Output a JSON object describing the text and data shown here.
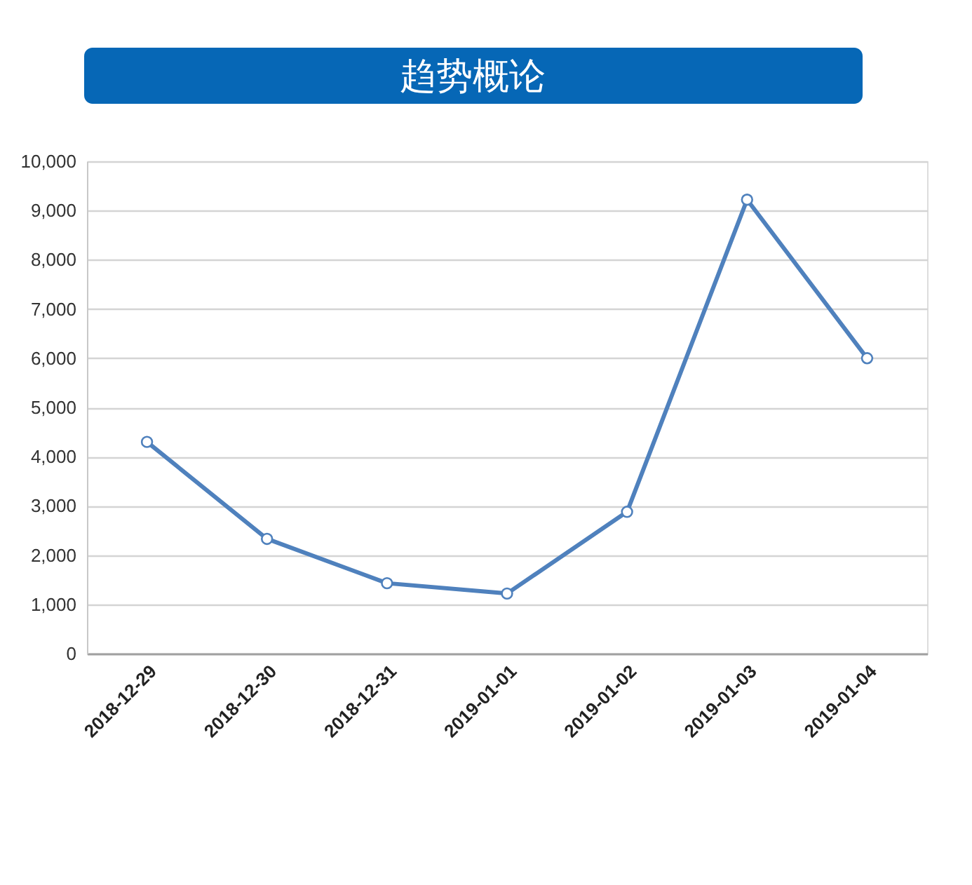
{
  "chart_data": {
    "type": "line",
    "title": "趋势概论",
    "categories": [
      "2018-12-29",
      "2018-12-30",
      "2018-12-31",
      "2019-01-01",
      "2019-01-02",
      "2019-01-03",
      "2019-01-04"
    ],
    "series": [
      {
        "color": "#4f81bd",
        "values": [
          4300,
          2330,
          1430,
          1220,
          2880,
          9220,
          6000
        ]
      }
    ],
    "ylim": [
      0,
      10000
    ],
    "yticks": [
      0,
      {
        "value": 1000,
        "label": "1,000"
      },
      {
        "value": 2000,
        "label": "2,000"
      },
      {
        "value": 3000,
        "label": "3,000"
      },
      {
        "value": 4000,
        "label": "4,000"
      },
      {
        "value": 5000,
        "label": "5,000"
      },
      {
        "value": 6000,
        "label": "6,000"
      },
      {
        "value": 7000,
        "label": "7,000"
      },
      {
        "value": 8000,
        "label": "8,000"
      },
      {
        "value": 9000,
        "label": "9,000"
      },
      {
        "value": 10000,
        "label": "10,000"
      }
    ],
    "grid": "y",
    "marker": "circle",
    "line_style": "solid"
  }
}
